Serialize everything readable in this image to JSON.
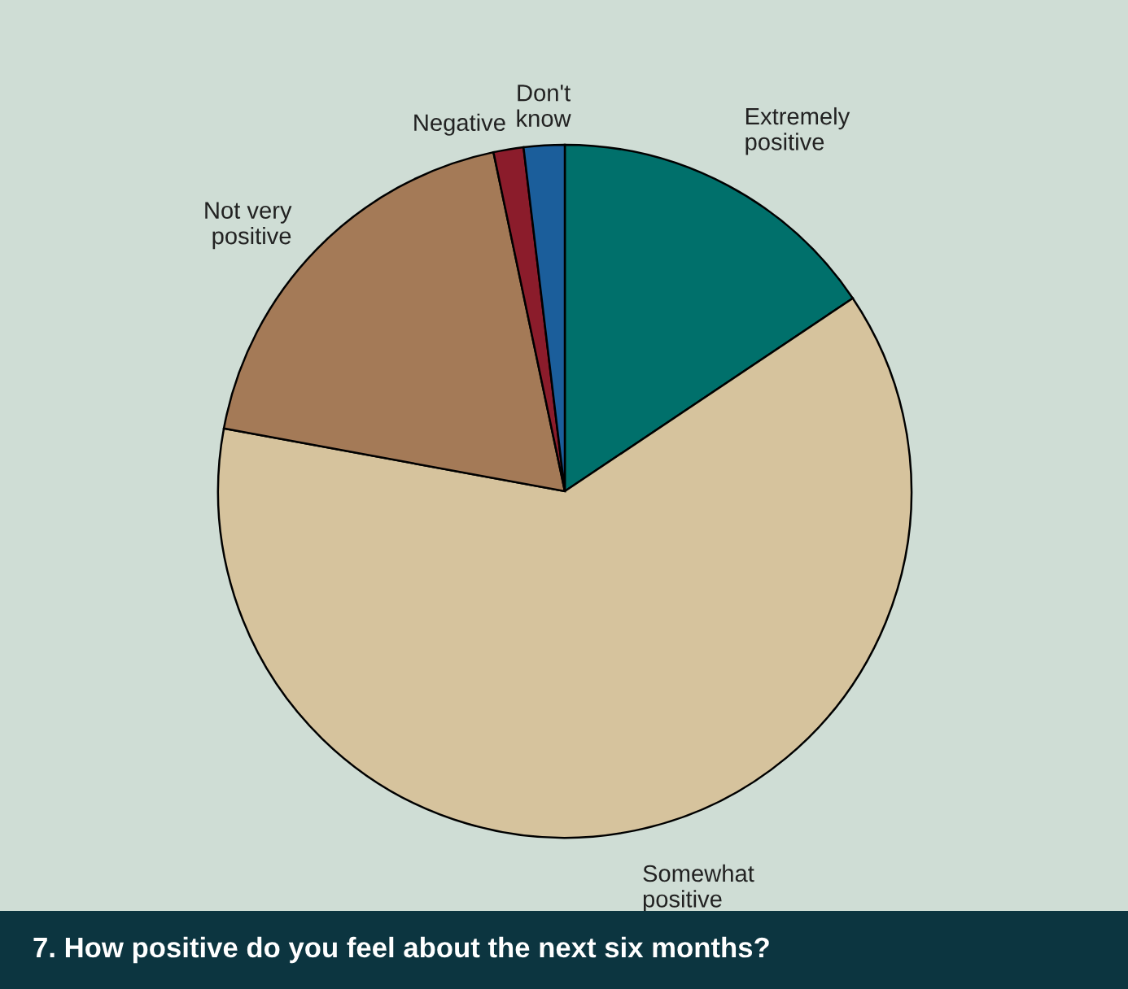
{
  "chart_data": {
    "type": "pie",
    "title": "7. How positive do you feel about the next six months?",
    "categories": [
      "Extremely\npositive",
      "Somewhat\npositive",
      "Not very\npositive",
      "Negative",
      "Don't\nknow"
    ],
    "values": [
      15.6,
      62.3,
      18.8,
      1.4,
      1.9
    ],
    "colors": [
      "#00706b",
      "#d6c39d",
      "#a47a57",
      "#8b1c2b",
      "#1b5e9b"
    ]
  }
}
